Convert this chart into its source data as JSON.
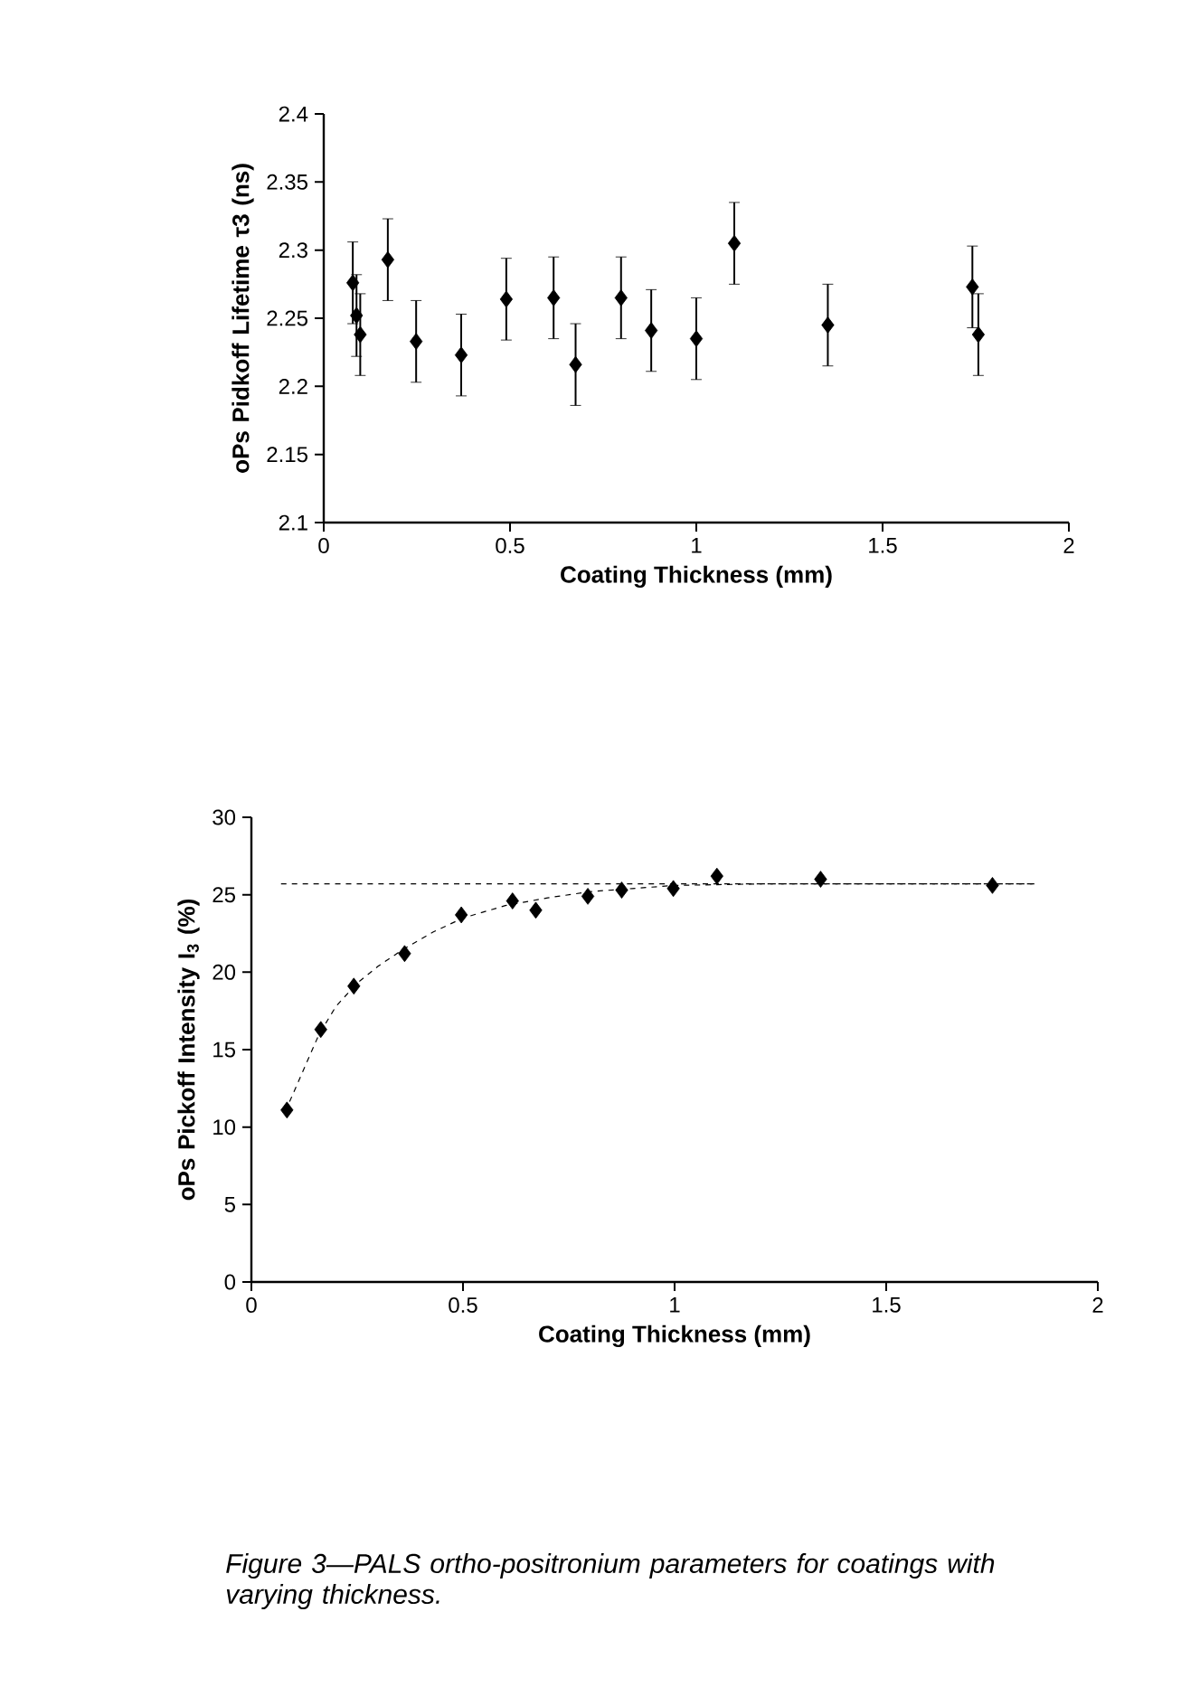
{
  "chart_data": [
    {
      "type": "scatter",
      "xlabel": "Coating Thickness (mm)",
      "ylabel": "oPs Pidkoff Lifetime τ3 (ns)",
      "color": "#000000",
      "marker": "diamond",
      "x": [
        0.078,
        0.088,
        0.098,
        0.172,
        0.248,
        0.369,
        0.49,
        0.617,
        0.676,
        0.798,
        0.879,
        1.0,
        1.102,
        1.353,
        1.741,
        1.757
      ],
      "values": [
        2.276,
        2.252,
        2.238,
        2.293,
        2.233,
        2.223,
        2.264,
        2.265,
        2.216,
        2.265,
        2.241,
        2.235,
        2.305,
        2.245,
        2.273,
        2.238
      ],
      "errors": [
        0.03,
        0.03,
        0.03,
        0.03,
        0.03,
        0.03,
        0.03,
        0.03,
        0.03,
        0.03,
        0.03,
        0.03,
        0.03,
        0.03,
        0.03,
        0.03
      ],
      "xlim": [
        0,
        2
      ],
      "ylim": [
        2.1,
        2.4
      ],
      "xticks": [
        0,
        0.5,
        1,
        1.5,
        2
      ],
      "yticks": [
        2.1,
        2.15,
        2.2,
        2.25,
        2.3,
        2.35,
        2.4
      ]
    },
    {
      "type": "scatter",
      "xlabel": "Coating Thickness (mm)",
      "ylabel": "oPs Pickoff Intensity I$_{3}$ (%)",
      "series": [
        {
          "type": "line",
          "color": "#000000",
          "line_style": "dashed",
          "marker": "none",
          "x": [
            0.07,
            1.85
          ],
          "values": [
            25.7,
            25.7
          ]
        },
        {
          "type": "line",
          "color": "#000000",
          "line_style": "dashed",
          "marker": "none",
          "x": [
            0.08,
            0.12,
            0.16,
            0.2,
            0.25,
            0.3,
            0.36,
            0.43,
            0.5,
            0.6,
            0.7,
            0.8,
            0.9,
            1.0,
            1.2,
            1.85
          ],
          "values": [
            11.0,
            13.5,
            16.0,
            17.8,
            19.3,
            20.4,
            21.5,
            22.6,
            23.5,
            24.3,
            24.8,
            25.2,
            25.4,
            25.6,
            25.7,
            25.7
          ]
        },
        {
          "type": "scatter",
          "color": "#000000",
          "marker": "diamond",
          "x": [
            0.084,
            0.164,
            0.242,
            0.362,
            0.496,
            0.617,
            0.672,
            0.795,
            0.875,
            0.997,
            1.1,
            1.345,
            1.751
          ],
          "values": [
            11.1,
            16.3,
            19.1,
            21.2,
            23.7,
            24.6,
            24.0,
            24.9,
            25.3,
            25.4,
            26.2,
            26.0,
            25.6
          ]
        }
      ],
      "xlim": [
        0,
        2
      ],
      "ylim": [
        0,
        30
      ],
      "xticks": [
        0,
        0.5,
        1,
        1.5,
        2
      ],
      "yticks": [
        0,
        5,
        10,
        15,
        20,
        25,
        30
      ],
      "annotations": [
        "Figure 3—PALS ortho-positronium parameters for coatings with varying thickness."
      ]
    }
  ]
}
